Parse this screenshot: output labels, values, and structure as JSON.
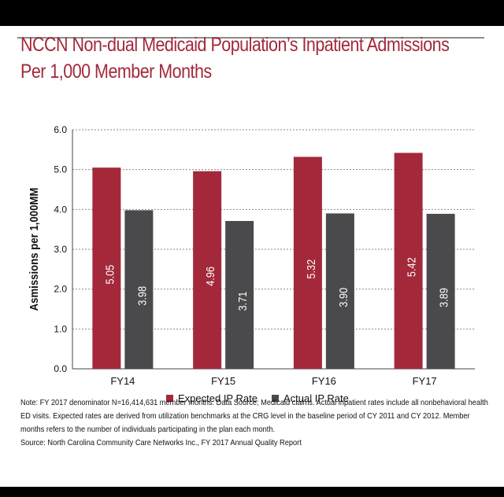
{
  "header": {
    "title_line1": "NCCN Non-dual Medicaid Population’s Inpatient Admissions",
    "title_line2": "Per 1,000 Member Months"
  },
  "colors": {
    "expected": "#a3293a",
    "actual": "#4a4a4c",
    "title": "#a3293a"
  },
  "chart_data": {
    "type": "bar",
    "title": "NCCN Non-dual Medicaid Population’s Inpatient Admissions Per 1,000 Member Months",
    "xlabel": "",
    "ylabel": "Asmissions per 1,000MM",
    "ylim": [
      0,
      6
    ],
    "yticks": [
      "0.0",
      "1.0",
      "2.0",
      "3.0",
      "4.0",
      "5.0",
      "6.0"
    ],
    "grid": true,
    "legend_position": "bottom-center",
    "categories": [
      "FY14",
      "FY15",
      "FY16",
      "FY17"
    ],
    "series": [
      {
        "name": "Expected IP Rate",
        "color": "#a3293a",
        "values": [
          5.05,
          4.96,
          5.32,
          5.42
        ],
        "labels": [
          "5.05",
          "4.96",
          "5.32",
          "5.42"
        ]
      },
      {
        "name": "Actual IP Rate",
        "color": "#4a4a4c",
        "values": [
          3.98,
          3.71,
          3.9,
          3.89
        ],
        "labels": [
          "3.98",
          "3.71",
          "3.90",
          "3.89"
        ]
      }
    ]
  },
  "footer": {
    "note": "Note: FY 2017 denominator N=16,414,631 member months. Data Source; Medicaid claims. Actual inpatient rates include all nonbehavioral health ED visits. Expected rates are derived from utilization benchmarks at the CRG level in the baseline period of CY 2011 and CY 2012. Member months refers to the number of individuals participating in the plan each month.",
    "source": "Source: North Carolina Community Care Networks Inc., FY 2017 Annual Quality Report"
  }
}
